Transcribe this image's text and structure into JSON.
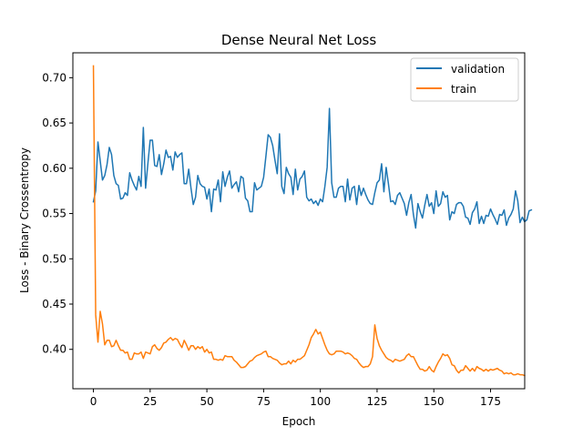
{
  "chart_data": {
    "type": "line",
    "title": "Dense Neural Net Loss",
    "xlabel": "Epoch",
    "ylabel": "Loss - Binary Crossentropy",
    "xlim": [
      -9.05,
      190.05
    ],
    "ylim": [
      0.3565,
      0.7275
    ],
    "xticks": [
      0,
      25,
      50,
      75,
      100,
      125,
      150,
      175
    ],
    "yticks": [
      0.4,
      0.45,
      0.5,
      0.55,
      0.6,
      0.65,
      0.7
    ],
    "xtick_labels": [
      "0",
      "25",
      "50",
      "75",
      "100",
      "125",
      "150",
      "175"
    ],
    "ytick_labels": [
      "0.40",
      "0.45",
      "0.50",
      "0.55",
      "0.60",
      "0.65",
      "0.70"
    ],
    "grid": false,
    "legend_position": "top-right",
    "series": [
      {
        "name": "validation",
        "color": "#1f77b4",
        "values": [
          0.563,
          0.575,
          0.629,
          0.608,
          0.587,
          0.592,
          0.604,
          0.623,
          0.615,
          0.592,
          0.583,
          0.581,
          0.566,
          0.567,
          0.573,
          0.57,
          0.595,
          0.587,
          0.581,
          0.576,
          0.591,
          0.58,
          0.645,
          0.578,
          0.605,
          0.631,
          0.631,
          0.603,
          0.602,
          0.615,
          0.593,
          0.605,
          0.62,
          0.612,
          0.613,
          0.598,
          0.618,
          0.612,
          0.615,
          0.617,
          0.583,
          0.583,
          0.599,
          0.578,
          0.56,
          0.568,
          0.592,
          0.583,
          0.58,
          0.579,
          0.566,
          0.577,
          0.552,
          0.577,
          0.576,
          0.587,
          0.563,
          0.596,
          0.58,
          0.59,
          0.597,
          0.578,
          0.582,
          0.585,
          0.574,
          0.591,
          0.589,
          0.567,
          0.564,
          0.552,
          0.552,
          0.584,
          0.576,
          0.578,
          0.58,
          0.59,
          0.613,
          0.637,
          0.634,
          0.625,
          0.609,
          0.594,
          0.638,
          0.58,
          0.572,
          0.601,
          0.594,
          0.59,
          0.571,
          0.599,
          0.576,
          0.588,
          0.591,
          0.597,
          0.568,
          0.564,
          0.566,
          0.561,
          0.564,
          0.559,
          0.566,
          0.563,
          0.58,
          0.601,
          0.666,
          0.584,
          0.568,
          0.568,
          0.578,
          0.58,
          0.58,
          0.563,
          0.588,
          0.565,
          0.578,
          0.58,
          0.56,
          0.581,
          0.57,
          0.578,
          0.571,
          0.565,
          0.561,
          0.56,
          0.573,
          0.584,
          0.587,
          0.605,
          0.574,
          0.601,
          0.583,
          0.563,
          0.564,
          0.56,
          0.57,
          0.573,
          0.567,
          0.561,
          0.548,
          0.562,
          0.571,
          0.549,
          0.534,
          0.561,
          0.552,
          0.545,
          0.559,
          0.571,
          0.558,
          0.562,
          0.55,
          0.575,
          0.558,
          0.561,
          0.574,
          0.568,
          0.57,
          0.543,
          0.552,
          0.55,
          0.56,
          0.562,
          0.562,
          0.558,
          0.546,
          0.545,
          0.538,
          0.551,
          0.555,
          0.563,
          0.539,
          0.547,
          0.539,
          0.548,
          0.547,
          0.555,
          0.549,
          0.544,
          0.538,
          0.549,
          0.548,
          0.554,
          0.537,
          0.545,
          0.549,
          0.555,
          0.575,
          0.564,
          0.54,
          0.546,
          0.541,
          0.543,
          0.553,
          0.554
        ]
      },
      {
        "name": "train",
        "color": "#ff7f0e",
        "values": [
          0.713,
          0.438,
          0.408,
          0.442,
          0.428,
          0.405,
          0.41,
          0.41,
          0.403,
          0.404,
          0.41,
          0.404,
          0.399,
          0.399,
          0.396,
          0.397,
          0.389,
          0.389,
          0.396,
          0.395,
          0.395,
          0.397,
          0.39,
          0.397,
          0.396,
          0.395,
          0.403,
          0.405,
          0.401,
          0.399,
          0.402,
          0.407,
          0.408,
          0.411,
          0.413,
          0.41,
          0.412,
          0.411,
          0.406,
          0.402,
          0.41,
          0.405,
          0.399,
          0.404,
          0.404,
          0.4,
          0.403,
          0.401,
          0.403,
          0.397,
          0.4,
          0.396,
          0.397,
          0.389,
          0.389,
          0.388,
          0.389,
          0.388,
          0.393,
          0.392,
          0.392,
          0.392,
          0.388,
          0.386,
          0.383,
          0.38,
          0.38,
          0.381,
          0.384,
          0.387,
          0.388,
          0.391,
          0.393,
          0.394,
          0.395,
          0.397,
          0.398,
          0.392,
          0.392,
          0.39,
          0.389,
          0.388,
          0.385,
          0.383,
          0.384,
          0.384,
          0.387,
          0.384,
          0.388,
          0.386,
          0.389,
          0.389,
          0.391,
          0.393,
          0.399,
          0.405,
          0.413,
          0.417,
          0.422,
          0.417,
          0.419,
          0.412,
          0.405,
          0.399,
          0.395,
          0.394,
          0.395,
          0.398,
          0.398,
          0.398,
          0.397,
          0.395,
          0.396,
          0.395,
          0.393,
          0.39,
          0.389,
          0.385,
          0.382,
          0.38,
          0.381,
          0.381,
          0.384,
          0.392,
          0.427,
          0.412,
          0.404,
          0.399,
          0.395,
          0.391,
          0.389,
          0.388,
          0.386,
          0.389,
          0.388,
          0.387,
          0.388,
          0.389,
          0.393,
          0.395,
          0.392,
          0.392,
          0.387,
          0.382,
          0.378,
          0.378,
          0.376,
          0.377,
          0.381,
          0.377,
          0.375,
          0.381,
          0.386,
          0.39,
          0.395,
          0.393,
          0.394,
          0.39,
          0.383,
          0.382,
          0.377,
          0.374,
          0.377,
          0.377,
          0.382,
          0.379,
          0.376,
          0.379,
          0.376,
          0.381,
          0.379,
          0.378,
          0.376,
          0.378,
          0.376,
          0.378,
          0.377,
          0.378,
          0.379,
          0.377,
          0.376,
          0.373,
          0.374,
          0.373,
          0.374,
          0.372,
          0.372,
          0.373,
          0.372,
          0.372,
          0.371
        ]
      }
    ]
  }
}
